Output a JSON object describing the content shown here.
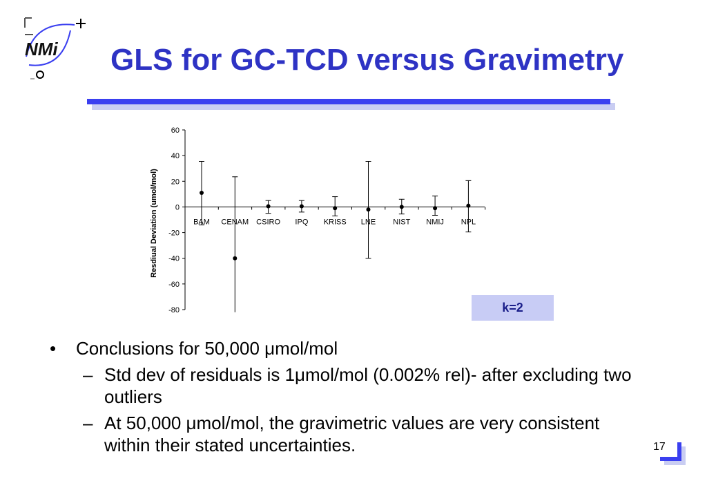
{
  "header": {
    "logo_text": "NMi",
    "title": "GLS for GC-TCD versus Gravimetry"
  },
  "chart_data": {
    "type": "scatter",
    "ylabel": "Resdiual Deviation (umol/mol)",
    "xlabel": "",
    "ylim": [
      -80,
      60
    ],
    "yticks": [
      -80,
      -60,
      -40,
      -20,
      0,
      20,
      40,
      60
    ],
    "categories": [
      "BAM",
      "CENAM",
      "CSIRO",
      "IPQ",
      "KRISS",
      "LNE",
      "NIST",
      "NMIJ",
      "NPL"
    ],
    "values": [
      11,
      -40,
      0.5,
      0.5,
      -1,
      -2,
      0,
      -1,
      1
    ],
    "error_upper": [
      35.5,
      23.5,
      5,
      5,
      8,
      35.5,
      6,
      8.5,
      20.5
    ],
    "error_lower": [
      -14,
      -82,
      -5,
      -4,
      -7,
      -40,
      -5.5,
      -6.5,
      -19.5
    ],
    "grid": false,
    "annotation": "k=2"
  },
  "bullets": {
    "main": "Conclusions for 50,000 μmol/mol",
    "sub": [
      "Std dev of residuals is 1μmol/mol (0.002% rel)- after excluding two outliers",
      "At 50,000 μmol/mol, the gravimetric values are very consistent within their stated uncertainties."
    ],
    "bullet_char": "•",
    "dash_char": "–"
  },
  "footer": {
    "page_number": "17"
  },
  "colors": {
    "title": "#2e33c4",
    "rule": "#3a3ff0",
    "annotation_box": "#c8ccf5"
  }
}
